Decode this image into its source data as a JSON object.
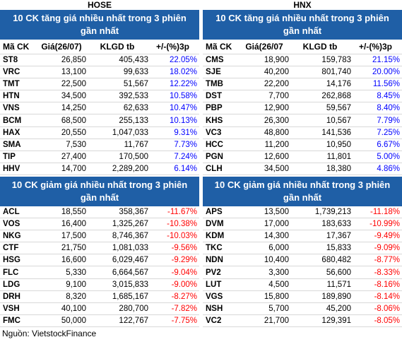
{
  "hose": {
    "label": "HOSE",
    "gainers": {
      "title": "10 CK tăng giá nhiều nhất trong 3 phiên gần nhất",
      "columns": [
        "Mã CK",
        "Giá(26/07)",
        "KLGD tb",
        "+/-(%)3p"
      ],
      "rows": [
        [
          "ST8",
          "26,850",
          "405,433",
          "22.05%"
        ],
        [
          "VRC",
          "13,100",
          "99,633",
          "18.02%"
        ],
        [
          "TMT",
          "22,500",
          "51,567",
          "12.22%"
        ],
        [
          "HTN",
          "34,500",
          "392,533",
          "10.58%"
        ],
        [
          "VNS",
          "14,250",
          "62,633",
          "10.47%"
        ],
        [
          "BCM",
          "68,500",
          "255,133",
          "10.13%"
        ],
        [
          "HAX",
          "20,550",
          "1,047,033",
          "9.31%"
        ],
        [
          "SMA",
          "7,530",
          "11,767",
          "7.73%"
        ],
        [
          "TIP",
          "27,400",
          "170,500",
          "7.24%"
        ],
        [
          "HHV",
          "14,700",
          "2,289,200",
          "6.14%"
        ]
      ]
    },
    "losers": {
      "title": "10 CK giảm giá nhiều nhất trong 3 phiên gần nhất",
      "rows": [
        [
          "ACL",
          "18,550",
          "358,367",
          "-11.67%"
        ],
        [
          "VOS",
          "16,400",
          "1,325,267",
          "-10.38%"
        ],
        [
          "NKG",
          "17,500",
          "8,746,367",
          "-10.03%"
        ],
        [
          "CTF",
          "21,750",
          "1,081,033",
          "-9.56%"
        ],
        [
          "HSG",
          "16,600",
          "6,029,467",
          "-9.29%"
        ],
        [
          "FLC",
          "5,330",
          "6,664,567",
          "-9.04%"
        ],
        [
          "LDG",
          "9,100",
          "3,015,833",
          "-9.00%"
        ],
        [
          "DRH",
          "8,320",
          "1,685,167",
          "-8.27%"
        ],
        [
          "VSH",
          "40,100",
          "280,700",
          "-7.82%"
        ],
        [
          "FMC",
          "50,000",
          "122,767",
          "-7.75%"
        ]
      ]
    }
  },
  "hnx": {
    "label": "HNX",
    "gainers": {
      "title": "10 CK tăng giá nhiều nhất trong 3 phiên gần nhất",
      "columns": [
        "Mã CK",
        "Giá(26/07",
        "KLGD tb",
        "+/-(%)3p"
      ],
      "rows": [
        [
          "CMS",
          "18,900",
          "159,783",
          "21.15%"
        ],
        [
          "SJE",
          "40,200",
          "801,740",
          "20.00%"
        ],
        [
          "TMB",
          "22,200",
          "14,176",
          "11.56%"
        ],
        [
          "DST",
          "7,700",
          "262,868",
          "8.45%"
        ],
        [
          "PBP",
          "12,900",
          "59,567",
          "8.40%"
        ],
        [
          "KHS",
          "26,300",
          "10,567",
          "7.79%"
        ],
        [
          "VC3",
          "48,800",
          "141,536",
          "7.25%"
        ],
        [
          "HCC",
          "11,200",
          "10,950",
          "6.67%"
        ],
        [
          "PGN",
          "12,600",
          "11,801",
          "5.00%"
        ],
        [
          "CLH",
          "34,500",
          "18,380",
          "4.86%"
        ]
      ]
    },
    "losers": {
      "title": "10 CK giảm giá nhiều nhất trong 3 phiên gần nhất",
      "rows": [
        [
          "APS",
          "13,500",
          "1,739,213",
          "-11.18%"
        ],
        [
          "DVM",
          "17,000",
          "183,633",
          "-10.99%"
        ],
        [
          "KDM",
          "14,300",
          "17,367",
          "-9.49%"
        ],
        [
          "TKC",
          "6,000",
          "15,833",
          "-9.09%"
        ],
        [
          "NDN",
          "10,400",
          "680,482",
          "-8.77%"
        ],
        [
          "PV2",
          "3,300",
          "56,600",
          "-8.33%"
        ],
        [
          "LUT",
          "4,500",
          "11,571",
          "-8.16%"
        ],
        [
          "VGS",
          "15,800",
          "189,890",
          "-8.14%"
        ],
        [
          "NSH",
          "5,700",
          "45,200",
          "-8.06%"
        ],
        [
          "VC2",
          "21,700",
          "129,391",
          "-8.05%"
        ]
      ]
    }
  },
  "source": "Nguồn: VietstockFinance"
}
